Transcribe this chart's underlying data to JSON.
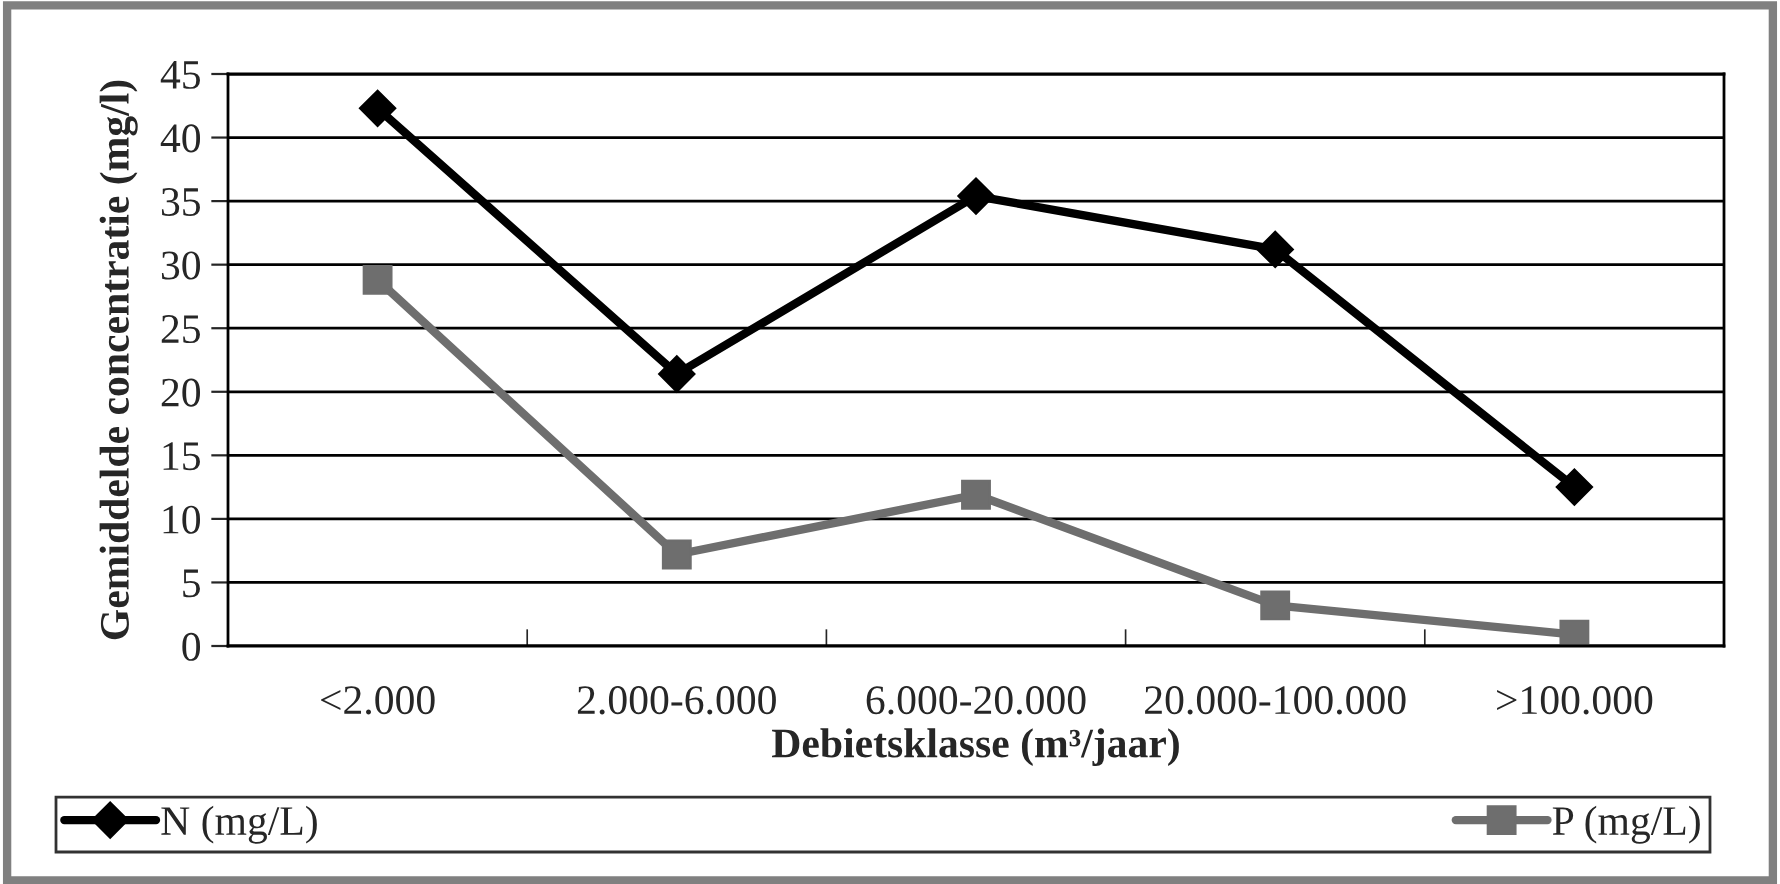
{
  "chart_data": {
    "type": "line",
    "xlabel": "Debietsklasse (m³/jaar)",
    "ylabel": "Gemiddelde concentratie (mg/l)",
    "categories": [
      "<2.000",
      "2.000-6.000",
      "6.000-20.000",
      "20.000-100.000",
      ">100.000"
    ],
    "series": [
      {
        "name": "N (mg/L)",
        "color": "#000000",
        "marker": "diamond",
        "values": [
          42.3,
          21.4,
          35.4,
          31.2,
          12.5
        ]
      },
      {
        "name": "P (mg/L)",
        "color": "#6e6e6e",
        "marker": "square",
        "values": [
          28.8,
          7.2,
          11.9,
          3.2,
          0.9
        ]
      }
    ],
    "ylim": [
      0,
      45
    ],
    "yticks": [
      0,
      5,
      10,
      15,
      20,
      25,
      30,
      35,
      40,
      45
    ],
    "grid": "y",
    "legend": "bottom"
  }
}
